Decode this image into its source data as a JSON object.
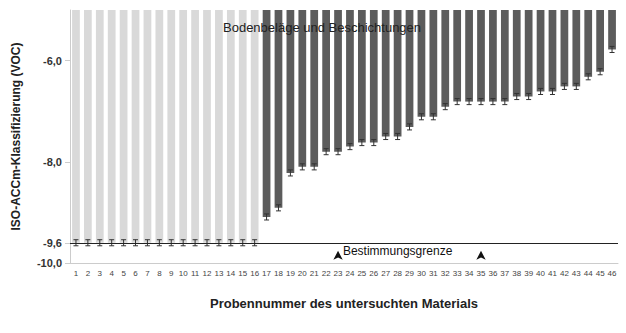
{
  "chart_data": {
    "type": "bar",
    "title": "Bodenbeläge und Beschichtungen",
    "x_label": "Probennummer des untersuchten Materials",
    "y_label": "ISO-ACCm-Klassifizierung (VOC)",
    "categories": [
      1,
      2,
      3,
      4,
      5,
      6,
      7,
      8,
      9,
      10,
      11,
      12,
      13,
      14,
      15,
      16,
      17,
      18,
      19,
      20,
      21,
      22,
      23,
      24,
      25,
      26,
      27,
      28,
      29,
      30,
      31,
      32,
      33,
      34,
      35,
      36,
      37,
      38,
      39,
      40,
      41,
      42,
      43,
      44,
      45,
      46
    ],
    "values": [
      -9.6,
      -9.6,
      -9.6,
      -9.6,
      -9.6,
      -9.6,
      -9.6,
      -9.6,
      -9.6,
      -9.6,
      -9.6,
      -9.6,
      -9.6,
      -9.6,
      -9.6,
      -9.6,
      -9.09,
      -8.91,
      -8.22,
      -8.1,
      -8.1,
      -7.8,
      -7.8,
      -7.7,
      -7.62,
      -7.62,
      -7.5,
      -7.5,
      -7.31,
      -7.11,
      -7.11,
      -6.91,
      -6.81,
      -6.81,
      -6.81,
      -6.81,
      -6.81,
      -6.71,
      -6.71,
      -6.61,
      -6.61,
      -6.51,
      -6.51,
      -6.32,
      -6.22,
      -5.78
    ],
    "errors": [
      0.06,
      0.06,
      0.06,
      0.06,
      0.06,
      0.06,
      0.06,
      0.06,
      0.06,
      0.06,
      0.06,
      0.06,
      0.06,
      0.06,
      0.06,
      0.06,
      0.06,
      0.06,
      0.06,
      0.06,
      0.06,
      0.06,
      0.06,
      0.06,
      0.06,
      0.06,
      0.06,
      0.06,
      0.06,
      0.06,
      0.06,
      0.06,
      0.06,
      0.06,
      0.06,
      0.06,
      0.06,
      0.06,
      0.06,
      0.06,
      0.06,
      0.06,
      0.06,
      0.06,
      0.06,
      0.06
    ],
    "colors": [
      "#d9d9d9",
      "#d9d9d9",
      "#d9d9d9",
      "#d9d9d9",
      "#d9d9d9",
      "#d9d9d9",
      "#d9d9d9",
      "#d9d9d9",
      "#d9d9d9",
      "#d9d9d9",
      "#d9d9d9",
      "#d9d9d9",
      "#d9d9d9",
      "#d9d9d9",
      "#d9d9d9",
      "#d9d9d9",
      "#5c5c5c",
      "#5c5c5c",
      "#5c5c5c",
      "#5c5c5c",
      "#5c5c5c",
      "#5c5c5c",
      "#5c5c5c",
      "#5c5c5c",
      "#5c5c5c",
      "#5c5c5c",
      "#5c5c5c",
      "#5c5c5c",
      "#5c5c5c",
      "#5c5c5c",
      "#5c5c5c",
      "#5c5c5c",
      "#5c5c5c",
      "#5c5c5c",
      "#5c5c5c",
      "#5c5c5c",
      "#5c5c5c",
      "#5c5c5c",
      "#5c5c5c",
      "#5c5c5c",
      "#5c5c5c",
      "#5c5c5c",
      "#5c5c5c",
      "#5c5c5c",
      "#5c5c5c",
      "#5c5c5c"
    ],
    "ylim": [
      -10,
      -5
    ],
    "yticks": [
      {
        "value": -10,
        "label": "-10,0"
      },
      {
        "value": -9.6,
        "label": "-9,6"
      },
      {
        "value": -8,
        "label": "-8,0"
      },
      {
        "value": -6,
        "label": "-6,0"
      }
    ],
    "limit_line": {
      "value": -9.6,
      "label": "Bestimmungsgrenze"
    },
    "grid": false
  }
}
